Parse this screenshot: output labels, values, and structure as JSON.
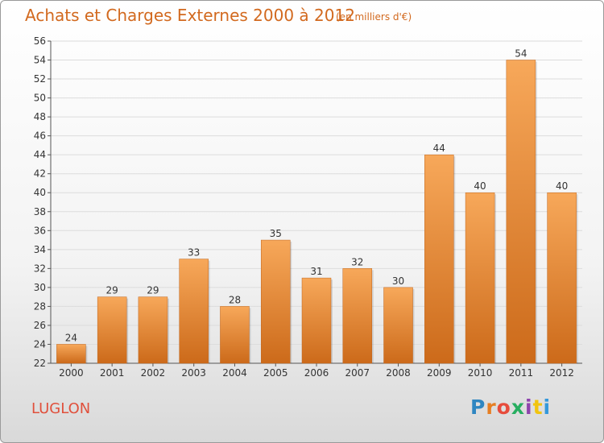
{
  "header": {
    "title": "Achats et Charges Externes 2000 à 2012",
    "unit": "(en milliers d'€)"
  },
  "footer": {
    "place": "LUGLON",
    "logo_letters": [
      {
        "char": "P",
        "color": "#2e86c1"
      },
      {
        "char": "r",
        "color": "#e67e22"
      },
      {
        "char": "o",
        "color": "#e74c3c"
      },
      {
        "char": "x",
        "color": "#27ae60"
      },
      {
        "char": "i",
        "color": "#8e44ad"
      },
      {
        "char": "t",
        "color": "#f1c40f"
      },
      {
        "char": "i",
        "color": "#3498db"
      }
    ]
  },
  "chart_data": {
    "type": "bar",
    "title": "Achats et Charges Externes 2000 à 2012",
    "subtitle": "(en milliers d'€)",
    "categories": [
      "2000",
      "2001",
      "2002",
      "2003",
      "2004",
      "2005",
      "2006",
      "2007",
      "2008",
      "2009",
      "2010",
      "2011",
      "2012"
    ],
    "values": [
      24,
      29,
      29,
      33,
      28,
      35,
      31,
      32,
      30,
      44,
      40,
      54,
      40
    ],
    "ylim": [
      22,
      56
    ],
    "yticks": [
      22,
      24,
      26,
      28,
      30,
      32,
      34,
      36,
      38,
      40,
      42,
      44,
      46,
      48,
      50,
      52,
      54,
      56
    ],
    "grid": true,
    "bar_color_top": "#f7a85a",
    "bar_color_bottom": "#cc6a1a",
    "label_color": "#333333"
  }
}
